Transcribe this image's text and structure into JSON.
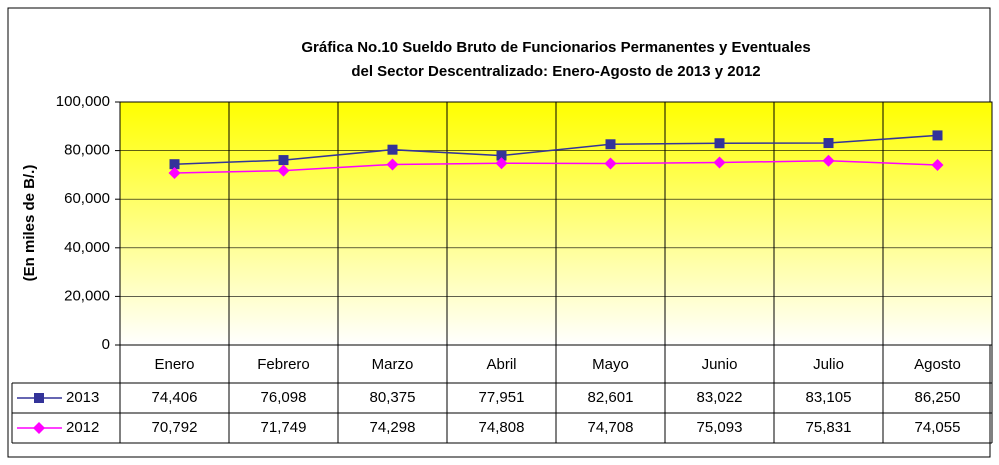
{
  "chart_data": {
    "type": "line",
    "title": [
      "Gráfica No.10 Sueldo Bruto de Funcionarios Permanentes y Eventuales",
      "del Sector Descentralizado: Enero-Agosto de 2013 y 2012"
    ],
    "ylabel": "(En miles de B/.)",
    "categories": [
      "Enero",
      "Febrero",
      "Marzo",
      "Abril",
      "Mayo",
      "Junio",
      "Julio",
      "Agosto"
    ],
    "series": [
      {
        "name": "2013",
        "color": "#333399",
        "marker": "square",
        "values": [
          74406,
          76098,
          80375,
          77951,
          82601,
          83022,
          83105,
          86250
        ],
        "value_labels": [
          "74,406",
          "76,098",
          "80,375",
          "77,951",
          "82,601",
          "83,022",
          "83,105",
          "86,250"
        ]
      },
      {
        "name": "2012",
        "color": "#ff00ff",
        "marker": "diamond",
        "values": [
          70792,
          71749,
          74298,
          74808,
          74708,
          75093,
          75831,
          74055
        ],
        "value_labels": [
          "70,792",
          "71,749",
          "74,298",
          "74,808",
          "74,708",
          "75,093",
          "75,831",
          "74,055"
        ]
      }
    ],
    "ylim": [
      0,
      100000
    ],
    "yticks": [
      0,
      {
        "value": 20000,
        "label": "20,000"
      },
      {
        "value": 40000,
        "label": "40,000"
      },
      {
        "value": 60000,
        "label": "60,000"
      },
      {
        "value": 80000,
        "label": "80,000"
      },
      {
        "value": 100000,
        "label": "100,000"
      }
    ],
    "grid": true,
    "data_table": true
  }
}
